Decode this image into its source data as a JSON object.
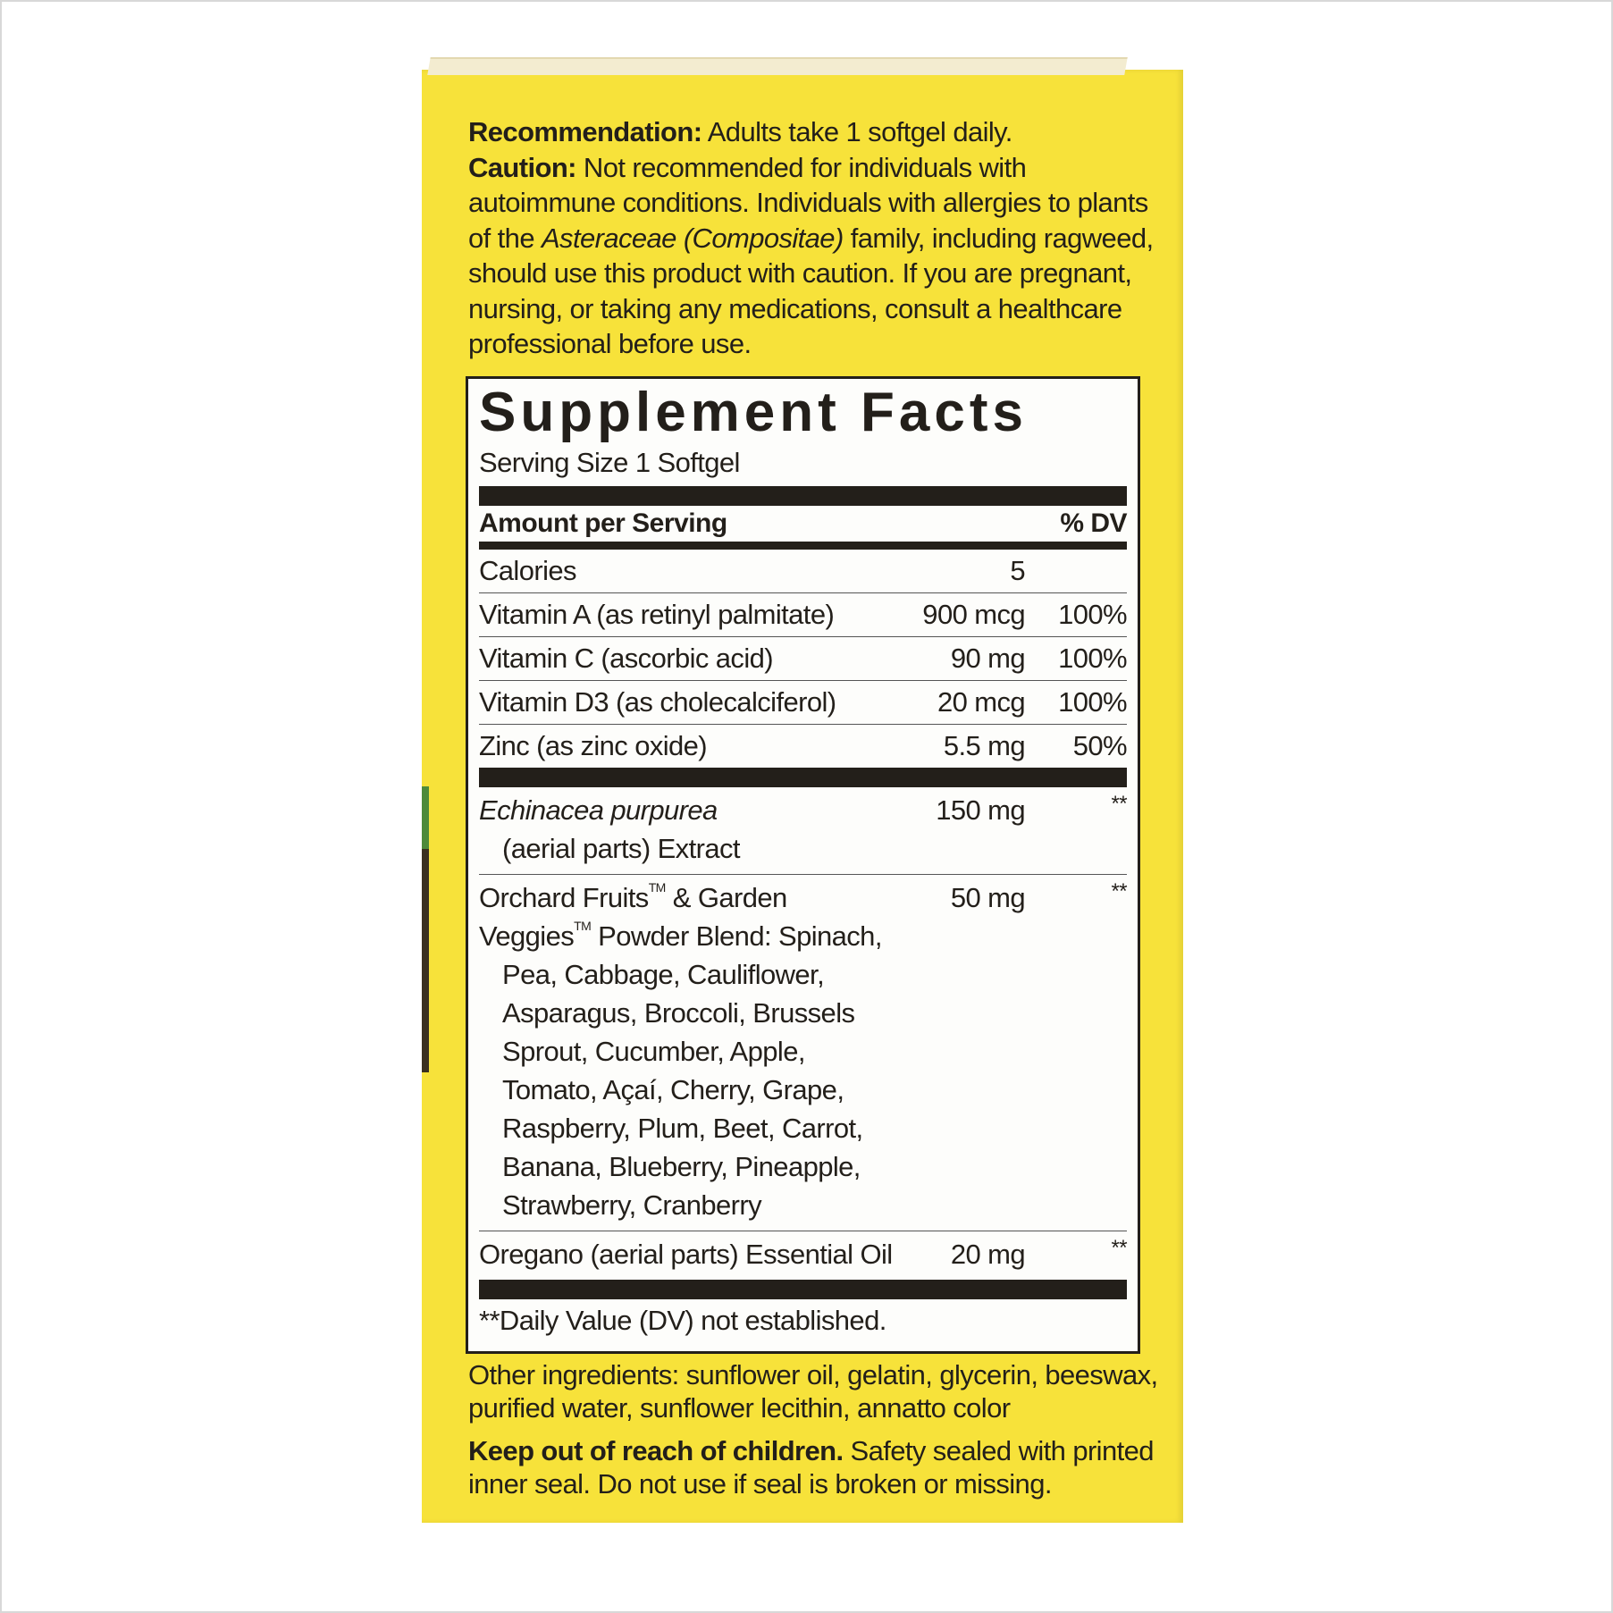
{
  "recommendation": {
    "label": "Recommendation:",
    "text": "Adults take 1 softgel daily."
  },
  "caution": {
    "label": "Caution:",
    "text1": "Not recommended for individuals with autoimmune conditions. Individuals with allergies to plants of the",
    "italic": "Asteraceae (Compositae)",
    "text2": "family, including ragweed, should use this product with caution. If you are pregnant, nursing, or taking any medications, consult a healthcare professional before use."
  },
  "facts": {
    "title": "Supplement Facts",
    "serving_size": "Serving Size 1 Softgel",
    "amount_header": "Amount per Serving",
    "dv_header": "% DV",
    "rows": [
      {
        "name": "Calories",
        "amount": "5",
        "dv": ""
      },
      {
        "name": "Vitamin A (as retinyl palmitate)",
        "amount": "900 mcg",
        "dv": "100%"
      },
      {
        "name": "Vitamin C (ascorbic acid)",
        "amount": "90 mg",
        "dv": "100%"
      },
      {
        "name": "Vitamin D3 (as cholecalciferol)",
        "amount": "20 mcg",
        "dv": "100%"
      },
      {
        "name": "Zinc (as zinc oxide)",
        "amount": "5.5 mg",
        "dv": "50%"
      }
    ],
    "echinacea": {
      "name_italic": "Echinacea purpurea",
      "name_rest": "(aerial parts) Extract",
      "amount": "150 mg",
      "dv": "**"
    },
    "blend": {
      "name1": "Orchard Fruits",
      "tm": "TM",
      "name2": "& Garden",
      "name3": "Veggies",
      "name4": "Powder Blend: Spinach,",
      "list": "Pea, Cabbage, Cauliflower, Asparagus, Broccoli, Brussels Sprout, Cucumber, Apple, Tomato, Açaí, Cherry, Grape, Raspberry, Plum, Beet, Carrot, Banana, Blueberry, Pineapple, Strawberry, Cranberry",
      "amount": "50 mg",
      "dv": "**"
    },
    "oregano": {
      "name": "Oregano (aerial parts) Essential Oil",
      "amount": "20 mg",
      "dv": "**"
    },
    "footnote": "**Daily Value (DV) not established."
  },
  "other_ingredients": "Other ingredients: sunflower oil, gelatin, glycerin, beeswax, purified water, sunflower lecithin, annatto color",
  "warning": {
    "label": "Keep out of reach of children.",
    "text": "Safety sealed with printed inner seal. Do not use if seal is broken or missing."
  },
  "colors": {
    "box": "#f7e23a",
    "panel": "#fdfdfb",
    "ink": "#231f1a"
  }
}
